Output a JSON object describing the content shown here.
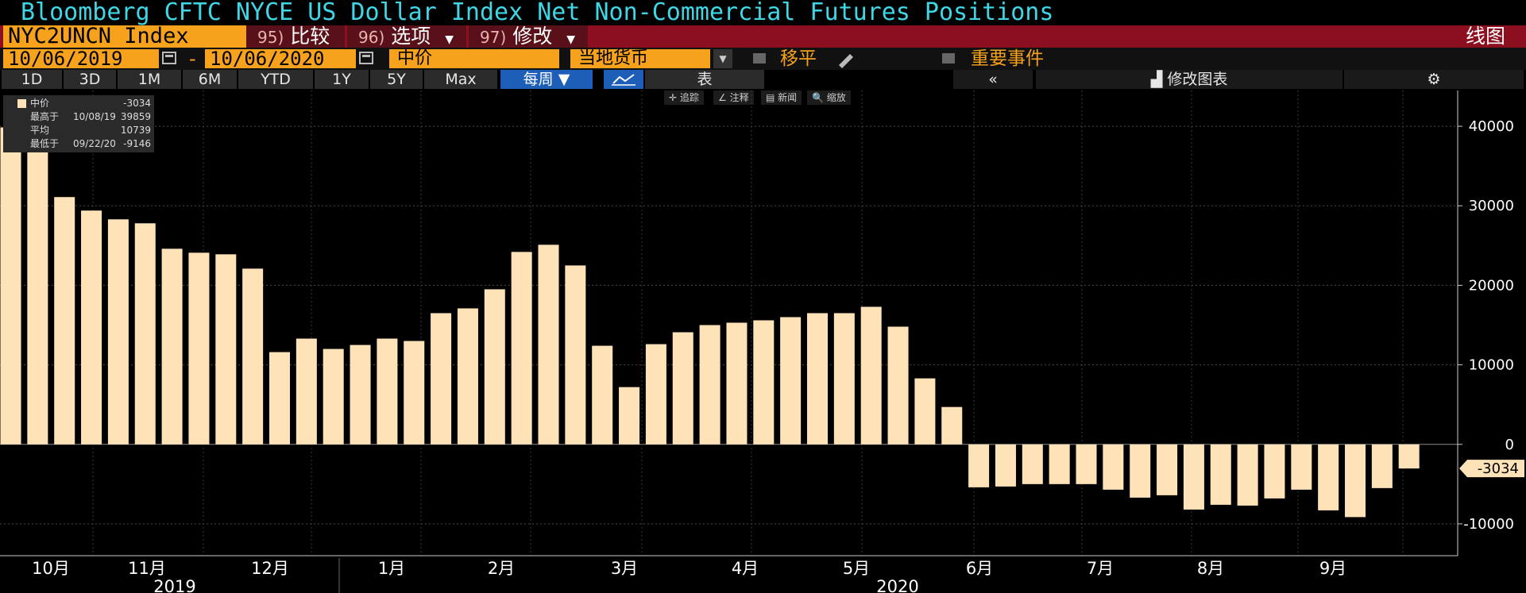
{
  "header": {
    "title": "Bloomberg CFTC NYCE US Dollar Index Net Non-Commercial Futures Positions",
    "ticker": "NYC2UNCN Index",
    "menu": [
      {
        "num": "95)",
        "label": "比较",
        "caret": ""
      },
      {
        "num": "96)",
        "label": "选项",
        "caret": "▼"
      },
      {
        "num": "97)",
        "label": "修改",
        "caret": "▼"
      }
    ],
    "chart_type_label": "线图"
  },
  "controls": {
    "start_date": "10/06/2019",
    "dash": "-",
    "end_date": "10/06/2020",
    "price_field": "中价",
    "currency_field": "当地货币",
    "shift_label": "移平",
    "events_label": "重要事件"
  },
  "periods": [
    "1D",
    "3D",
    "1M",
    "6M",
    "YTD",
    "1Y",
    "5Y",
    "Max"
  ],
  "frequency": "每周 ▼",
  "toolbar_right": {
    "table": "表",
    "collapse": "«",
    "edit_chart": "修改图表",
    "settings_icon": "gear-icon"
  },
  "chart_tools": [
    "✛ 追踪",
    "∠ 注释",
    "▤ 新闻",
    "🔍 缩放"
  ],
  "legend": {
    "rows": [
      {
        "label": "中价",
        "date": "",
        "value": "-3034"
      },
      {
        "label": "最高于",
        "date": "10/08/19",
        "value": "39859"
      },
      {
        "label": "平均",
        "date": "",
        "value": "10739"
      },
      {
        "label": "最低于",
        "date": "09/22/20",
        "value": "-9146"
      }
    ]
  },
  "colors": {
    "bar": "#ffe3b8",
    "title": "#3fd7e6",
    "accent": "#f7a21c",
    "menubar": "#8b0f1f",
    "background": "#000000"
  },
  "chart_data": {
    "type": "bar",
    "values": [
      39859,
      37500,
      31100,
      29400,
      28300,
      27800,
      24600,
      24100,
      23900,
      22100,
      11600,
      13300,
      12000,
      12500,
      13300,
      13000,
      16500,
      17100,
      19500,
      24200,
      25100,
      22500,
      12400,
      7200,
      12600,
      14100,
      15000,
      15300,
      15600,
      16000,
      16500,
      16500,
      17300,
      14800,
      8300,
      4700,
      -5400,
      -5300,
      -5000,
      -5000,
      -5000,
      -5700,
      -6700,
      -6400,
      -8200,
      -7600,
      -7700,
      -6800,
      -5700,
      -8300,
      -9146,
      -5500,
      -3034
    ],
    "yticks": [
      40000,
      30000,
      20000,
      10000,
      0,
      -10000
    ],
    "ylim": [
      -14000,
      44500
    ],
    "month_labels": [
      "10月",
      "11月",
      "12月",
      "1月",
      "2月",
      "3月",
      "4月",
      "5月",
      "6月",
      "7月",
      "8月",
      "9月"
    ],
    "year_labels": [
      "2019",
      "2020"
    ],
    "last_value_label": "-3034"
  }
}
